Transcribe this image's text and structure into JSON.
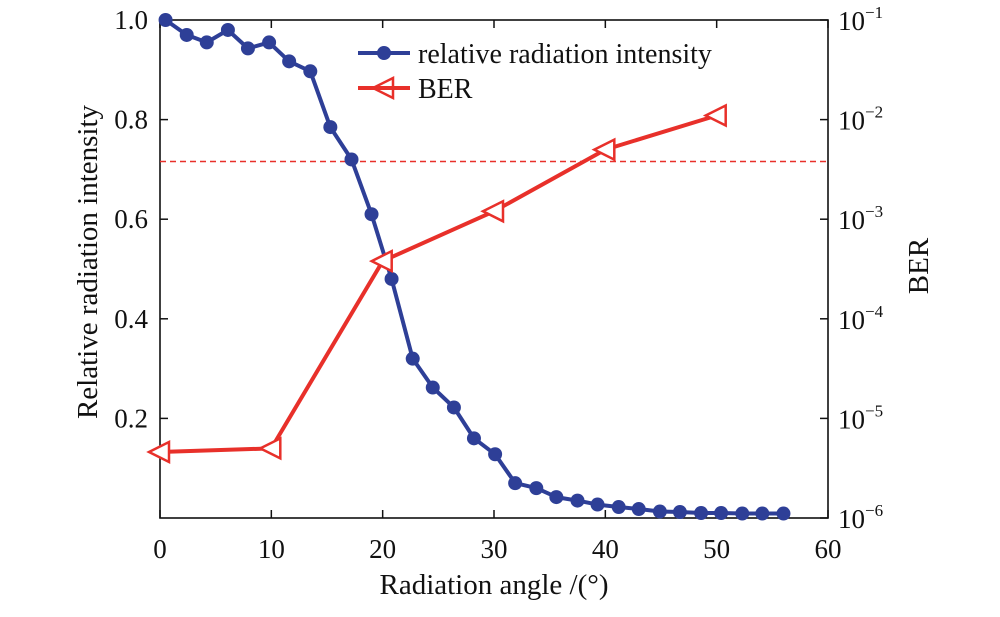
{
  "chart_data": {
    "type": "line",
    "title": "",
    "xlabel": "Radiation angle /(°)",
    "ylabel_left": "Relative radiation intensity",
    "ylabel_right": "BER",
    "xlim": [
      0,
      60
    ],
    "ylim_left": [
      0,
      1.0
    ],
    "ylim_right_log10": [
      -6,
      -1
    ],
    "x_ticks": [
      "0",
      "10",
      "20",
      "30",
      "40",
      "50",
      "60"
    ],
    "y_left_ticks": [
      "0.2",
      "0.4",
      "0.6",
      "0.8",
      "1.0"
    ],
    "y_right_ticks": [
      {
        "base": "10",
        "exp": "−6",
        "log": -6
      },
      {
        "base": "10",
        "exp": "−5",
        "log": -5
      },
      {
        "base": "10",
        "exp": "−4",
        "log": -4
      },
      {
        "base": "10",
        "exp": "−3",
        "log": -3
      },
      {
        "base": "10",
        "exp": "−2",
        "log": -2
      },
      {
        "base": "10",
        "exp": "−1",
        "log": -1
      }
    ],
    "threshold_ber": 0.0038,
    "legend_position": "top-right",
    "series": [
      {
        "name": "relative radiation intensity",
        "axis": "left",
        "color": "#2e3f97",
        "marker": "circle",
        "x": [
          0.5,
          2.4,
          4.2,
          6.1,
          7.9,
          9.8,
          11.6,
          13.5,
          15.3,
          17.2,
          19.0,
          20.8,
          22.7,
          24.5,
          26.4,
          28.2,
          30.1,
          31.9,
          33.8,
          35.6,
          37.5,
          39.3,
          41.2,
          43.0,
          44.9,
          46.7,
          48.6,
          50.4,
          52.3,
          54.1,
          56.0
        ],
        "values": [
          1.0,
          0.97,
          0.955,
          0.98,
          0.943,
          0.955,
          0.917,
          0.897,
          0.785,
          0.72,
          0.61,
          0.48,
          0.32,
          0.262,
          0.222,
          0.16,
          0.128,
          0.07,
          0.06,
          0.042,
          0.035,
          0.027,
          0.022,
          0.018,
          0.013,
          0.012,
          0.01,
          0.01,
          0.009,
          0.009,
          0.009
        ]
      },
      {
        "name": "BER",
        "axis": "right",
        "color": "#e8302a",
        "marker": "triangle-left",
        "x": [
          0,
          10,
          20,
          30,
          40,
          50
        ],
        "values": [
          4.6e-06,
          5e-06,
          0.00038,
          0.0012,
          0.005,
          0.011
        ]
      }
    ]
  }
}
